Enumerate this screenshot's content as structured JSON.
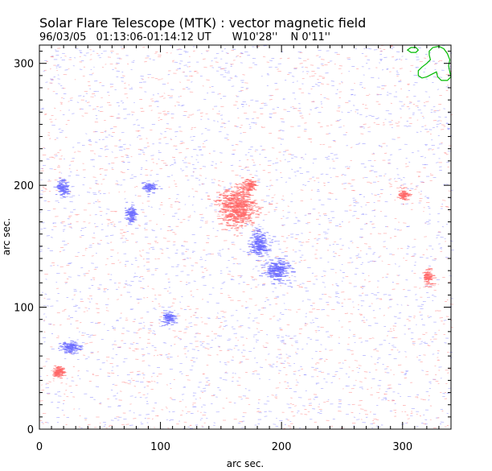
{
  "chart_data": {
    "type": "scatter",
    "title": "Solar Flare Telescope (MTK) : vector magnetic field",
    "subtitle": {
      "date": "96/03/05",
      "time_range": "01:13:06-01:14:12 UT",
      "longitude": "W10'28''",
      "latitude": "N 0'11''"
    },
    "xlabel": "arc sec.",
    "ylabel": "arc sec.",
    "xlim": [
      0,
      340
    ],
    "ylim": [
      0,
      315
    ],
    "xticks": [
      0,
      100,
      200,
      300
    ],
    "yticks": [
      0,
      100,
      200,
      300
    ],
    "x_tick_labels": [
      "0",
      "100",
      "200",
      "300"
    ],
    "y_tick_labels": [
      "0",
      "100",
      "200",
      "300"
    ],
    "grid": false,
    "colors": {
      "positive_polarity": "#ff6666",
      "negative_polarity": "#6b6bff",
      "contour": "#00bb00",
      "axis": "#000000"
    },
    "polarity_concentrations": [
      {
        "polarity": "positive",
        "x": 162,
        "y": 182,
        "extent_x": 14,
        "extent_y": 14,
        "density": 1.0
      },
      {
        "polarity": "positive",
        "x": 172,
        "y": 200,
        "extent_x": 5,
        "extent_y": 5,
        "density": 0.6
      },
      {
        "polarity": "negative",
        "x": 180,
        "y": 152,
        "extent_x": 7,
        "extent_y": 9,
        "density": 0.9
      },
      {
        "polarity": "negative",
        "x": 195,
        "y": 130,
        "extent_x": 9,
        "extent_y": 8,
        "density": 0.9
      },
      {
        "polarity": "negative",
        "x": 24,
        "y": 67,
        "extent_x": 7,
        "extent_y": 4,
        "density": 0.9
      },
      {
        "polarity": "positive",
        "x": 15,
        "y": 47,
        "extent_x": 4,
        "extent_y": 4,
        "density": 0.9
      },
      {
        "polarity": "negative",
        "x": 18,
        "y": 198,
        "extent_x": 4,
        "extent_y": 6,
        "density": 0.6
      },
      {
        "polarity": "negative",
        "x": 74,
        "y": 176,
        "extent_x": 4,
        "extent_y": 6,
        "density": 0.6
      },
      {
        "polarity": "negative",
        "x": 105,
        "y": 90,
        "extent_x": 5,
        "extent_y": 5,
        "density": 0.35
      },
      {
        "polarity": "negative",
        "x": 90,
        "y": 198,
        "extent_x": 4,
        "extent_y": 4,
        "density": 0.35
      },
      {
        "polarity": "positive",
        "x": 320,
        "y": 125,
        "extent_x": 4,
        "extent_y": 6,
        "density": 0.25
      },
      {
        "polarity": "positive",
        "x": 300,
        "y": 192,
        "extent_x": 4,
        "extent_y": 4,
        "density": 0.25
      }
    ],
    "contour_outline": [
      [
        322,
        310
      ],
      [
        325,
        313
      ],
      [
        330,
        314
      ],
      [
        334,
        312
      ],
      [
        337,
        308
      ],
      [
        339,
        303
      ],
      [
        338,
        298
      ],
      [
        339,
        293
      ],
      [
        340,
        289
      ],
      [
        337,
        286
      ],
      [
        332,
        286
      ],
      [
        329,
        289
      ],
      [
        328,
        293
      ],
      [
        324,
        291
      ],
      [
        320,
        289
      ],
      [
        316,
        288
      ],
      [
        313,
        290
      ],
      [
        313,
        294
      ],
      [
        316,
        297
      ],
      [
        320,
        300
      ],
      [
        323,
        303
      ],
      [
        322,
        307
      ],
      [
        322,
        310
      ]
    ],
    "contour_small": [
      [
        304,
        311
      ],
      [
        307,
        313
      ],
      [
        311,
        313
      ],
      [
        313,
        311
      ],
      [
        311,
        309
      ],
      [
        307,
        309
      ],
      [
        304,
        311
      ]
    ]
  }
}
